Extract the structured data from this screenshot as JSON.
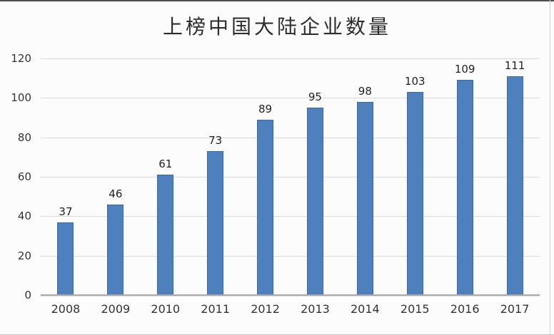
{
  "figure": {
    "background": "#fcfcfc"
  },
  "chart_data": {
    "type": "bar",
    "title": "上榜中国大陆企业数量",
    "categories": [
      "2008",
      "2009",
      "2010",
      "2011",
      "2012",
      "2013",
      "2014",
      "2015",
      "2016",
      "2017"
    ],
    "values": [
      37,
      46,
      61,
      73,
      89,
      95,
      98,
      103,
      109,
      111
    ],
    "xlabel": "",
    "ylabel": "",
    "ylim": [
      0,
      120
    ],
    "ytick_step": 20,
    "yticks": [
      0,
      20,
      40,
      60,
      80,
      100,
      120
    ],
    "grid": true,
    "legend_position": "none",
    "data_labels": true,
    "colors": {
      "bar_fill": "#4d80bc",
      "bar_border": "#3a6aa1",
      "gridline": "#d9d9d9",
      "axis_line": "#a8a8ab",
      "text": "#333333",
      "title_text": "#2d2d2d"
    }
  }
}
